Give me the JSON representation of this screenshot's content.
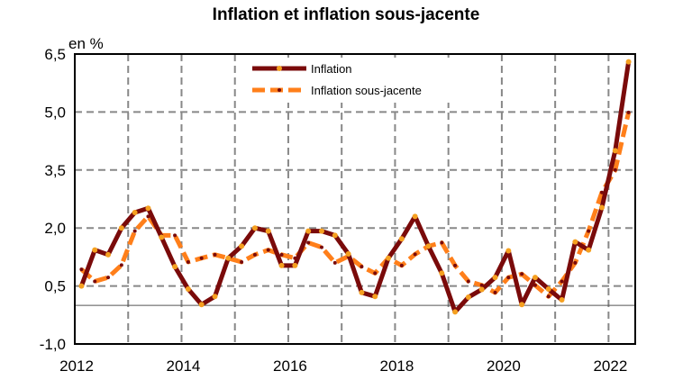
{
  "chart_data": {
    "type": "line",
    "title": "Inflation et inflation sous-jacente",
    "ylabel": "en %",
    "xlabel": "",
    "ylim": [
      -1.0,
      6.5
    ],
    "xlim": [
      2012,
      2022.5
    ],
    "yticks": [
      -1.0,
      0.5,
      2.0,
      3.5,
      5.0,
      6.5
    ],
    "ytick_labels": [
      "-1,0",
      "0,5",
      "2,0",
      "3,5",
      "5,0",
      "6,5"
    ],
    "xticks": [
      2012,
      2014,
      2016,
      2018,
      2020,
      2022
    ],
    "xtick_labels": [
      "2012",
      "2014",
      "2016",
      "2018",
      "2020",
      "2022"
    ],
    "grid": true,
    "legend_position": "top-center",
    "x_start": 2012.125,
    "x_step": 0.25,
    "series": [
      {
        "name": "Inflation",
        "color": "#7a0a0a",
        "marker_color": "#f5a020",
        "values": [
          0.5,
          1.43,
          1.31,
          2.0,
          2.4,
          2.51,
          1.76,
          1.0,
          0.42,
          0.02,
          0.23,
          1.22,
          1.53,
          2.0,
          1.92,
          1.03,
          1.03,
          1.92,
          1.92,
          1.81,
          1.33,
          0.33,
          0.23,
          1.22,
          1.72,
          2.3,
          1.53,
          0.83,
          -0.17,
          0.21,
          0.41,
          0.72,
          1.41,
          0.02,
          0.72,
          0.42,
          0.14,
          1.64,
          1.43,
          2.53,
          4.0,
          6.3
        ]
      },
      {
        "name": "Inflation sous-jacente",
        "color": "#ff7f1a",
        "marker_color": "#7a0a0a",
        "values": [
          0.93,
          0.62,
          0.72,
          1.04,
          1.92,
          2.3,
          1.81,
          1.81,
          1.12,
          1.22,
          1.31,
          1.22,
          1.12,
          1.31,
          1.43,
          1.31,
          1.22,
          1.62,
          1.5,
          1.1,
          1.27,
          1.0,
          0.83,
          1.22,
          1.03,
          1.32,
          1.53,
          1.62,
          1.03,
          0.62,
          0.52,
          0.33,
          0.72,
          0.81,
          0.52,
          0.23,
          0.62,
          1.1,
          1.92,
          2.92,
          3.5,
          4.99
        ]
      }
    ]
  }
}
